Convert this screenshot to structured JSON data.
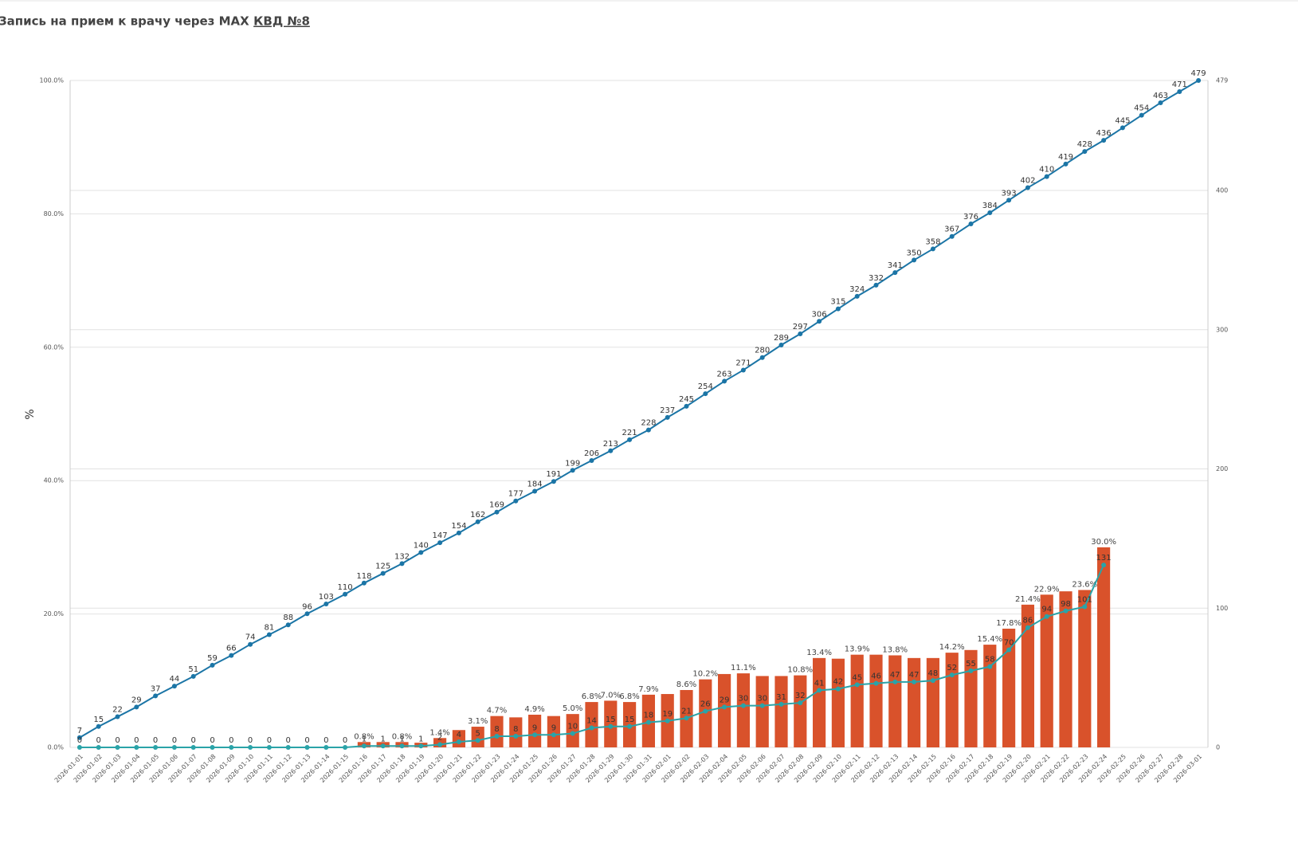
{
  "chart_data": {
    "type": "combo",
    "title": "Запись на прием к врачу через MAX",
    "title_link": "КВД №8",
    "y_label": "%",
    "categories": [
      "2026-01-01",
      "2026-01-02",
      "2026-01-03",
      "2026-01-04",
      "2026-01-05",
      "2026-01-06",
      "2026-01-07",
      "2026-01-08",
      "2026-01-09",
      "2026-01-10",
      "2026-01-11",
      "2026-01-12",
      "2026-01-13",
      "2026-01-14",
      "2026-01-15",
      "2026-01-16",
      "2026-01-17",
      "2026-01-18",
      "2026-01-19",
      "2026-01-20",
      "2026-01-21",
      "2026-01-22",
      "2026-01-23",
      "2026-01-24",
      "2026-01-25",
      "2026-01-26",
      "2026-01-27",
      "2026-01-28",
      "2026-01-29",
      "2026-01-30",
      "2026-01-31",
      "2026-02-01",
      "2026-02-02",
      "2026-02-03",
      "2026-02-04",
      "2026-02-05",
      "2026-02-06",
      "2026-02-07",
      "2026-02-08",
      "2026-02-09",
      "2026-02-10",
      "2026-02-11",
      "2026-02-12",
      "2026-02-13",
      "2026-02-14",
      "2026-02-15",
      "2026-02-16",
      "2026-02-17",
      "2026-02-18",
      "2026-02-19",
      "2026-02-20",
      "2026-02-21",
      "2026-02-22",
      "2026-02-23",
      "2026-02-24",
      "2026-02-25",
      "2026-02-26",
      "2026-02-27",
      "2026-02-28",
      "2026-03-01"
    ],
    "ylim": [
      0,
      100
    ],
    "yticks": [
      {
        "value": 0,
        "label": "0.0%"
      },
      {
        "value": 20,
        "label": "20.0%"
      },
      {
        "value": 40,
        "label": "40.0%"
      },
      {
        "value": 60,
        "label": "60.0%"
      },
      {
        "value": 80,
        "label": "80.0%"
      },
      {
        "value": 100,
        "label": "100.0%"
      }
    ],
    "y2lim": [
      0,
      479
    ],
    "y2ticks": [
      0,
      100,
      200,
      300,
      400,
      479
    ],
    "grid": true,
    "series": [
      {
        "type": "bar",
        "color": "#d9522b",
        "values": [
          0,
          0,
          0,
          0,
          0,
          0,
          0,
          0,
          0,
          0,
          0,
          0,
          0,
          0,
          0,
          0.8,
          0.8,
          0.8,
          0.7,
          1.4,
          2.6,
          3.1,
          4.7,
          4.5,
          4.9,
          4.7,
          5.0,
          6.8,
          7.0,
          6.8,
          7.9,
          8.0,
          8.6,
          10.2,
          11.0,
          11.1,
          10.7,
          10.7,
          10.8,
          13.4,
          13.3,
          13.9,
          13.9,
          13.8,
          13.4,
          13.4,
          14.2,
          14.6,
          15.4,
          17.8,
          21.4,
          22.9,
          23.4,
          23.6,
          30.0,
          null,
          null,
          null,
          null,
          null
        ],
        "value_labels": [
          null,
          null,
          null,
          null,
          null,
          null,
          null,
          null,
          null,
          null,
          null,
          null,
          null,
          null,
          null,
          "0.8%",
          null,
          "0.8%",
          null,
          "1.4%",
          null,
          "3.1%",
          "4.7%",
          null,
          "4.9%",
          null,
          "5.0%",
          "6.8%",
          "7.0%",
          "6.8%",
          "7.9%",
          null,
          "8.6%",
          "10.2%",
          null,
          "11.1%",
          null,
          null,
          "10.8%",
          "13.4%",
          null,
          "13.9%",
          null,
          "13.8%",
          null,
          null,
          "14.2%",
          null,
          "15.4%",
          "17.8%",
          "21.4%",
          "22.9%",
          null,
          "23.6%",
          "30.0%",
          null,
          null,
          null,
          null,
          null
        ]
      },
      {
        "type": "line",
        "axis": "y2",
        "color": "#1b75a6",
        "values": [
          7,
          15,
          22,
          29,
          37,
          44,
          51,
          59,
          66,
          74,
          81,
          88,
          96,
          103,
          110,
          118,
          125,
          132,
          140,
          147,
          154,
          162,
          169,
          177,
          184,
          191,
          199,
          206,
          213,
          221,
          228,
          237,
          245,
          254,
          263,
          271,
          280,
          289,
          297,
          306,
          315,
          324,
          332,
          341,
          350,
          358,
          367,
          376,
          384,
          393,
          402,
          410,
          419,
          428,
          436,
          445,
          454,
          463,
          471,
          479
        ]
      },
      {
        "type": "line",
        "axis": "y2",
        "color": "#2aa3a8",
        "values": [
          0,
          0,
          0,
          0,
          0,
          0,
          0,
          0,
          0,
          0,
          0,
          0,
          0,
          0,
          0,
          1,
          1,
          1,
          1,
          2,
          4,
          5,
          8,
          8,
          9,
          9,
          10,
          14,
          15,
          15,
          18,
          19,
          21,
          26,
          29,
          30,
          30,
          31,
          32,
          41,
          42,
          45,
          46,
          47,
          47,
          48,
          52,
          55,
          58,
          70,
          86,
          94,
          98,
          101,
          131,
          null,
          null,
          null,
          null,
          null
        ]
      }
    ]
  }
}
